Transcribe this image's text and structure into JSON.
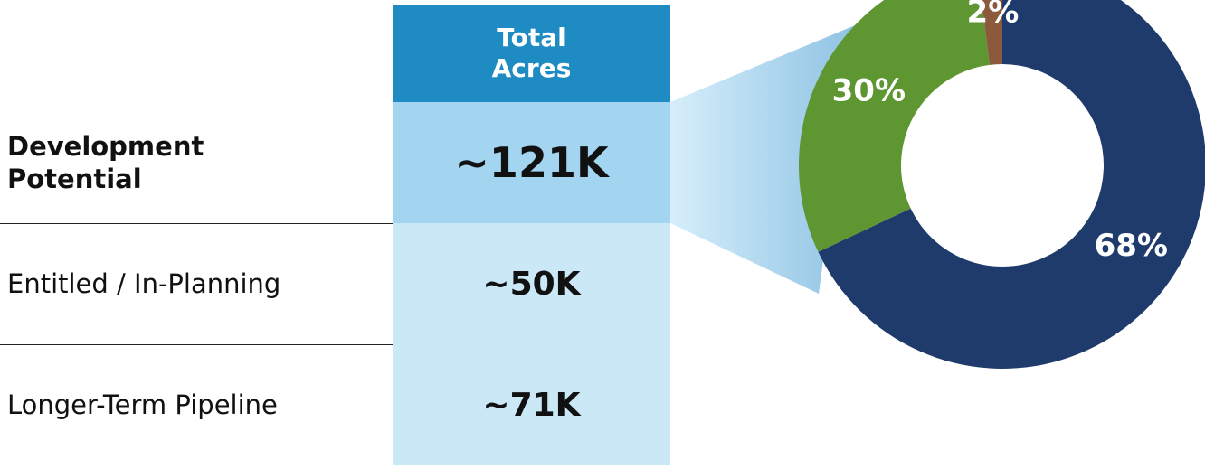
{
  "table": {
    "header": "Total Acres",
    "rows": [
      {
        "label": "Development Potential",
        "value": "~121K"
      },
      {
        "label": "Entitled / In-Planning",
        "value": "~50K"
      },
      {
        "label": "Longer-Term Pipeline",
        "value": "~71K"
      }
    ]
  },
  "chart_data": {
    "type": "donut",
    "values": [
      68,
      30,
      2
    ],
    "value_labels": [
      "68%",
      "30%",
      "2%"
    ],
    "colors": [
      "#1f3b6b",
      "#5e9632",
      "#8b5a3c"
    ]
  }
}
